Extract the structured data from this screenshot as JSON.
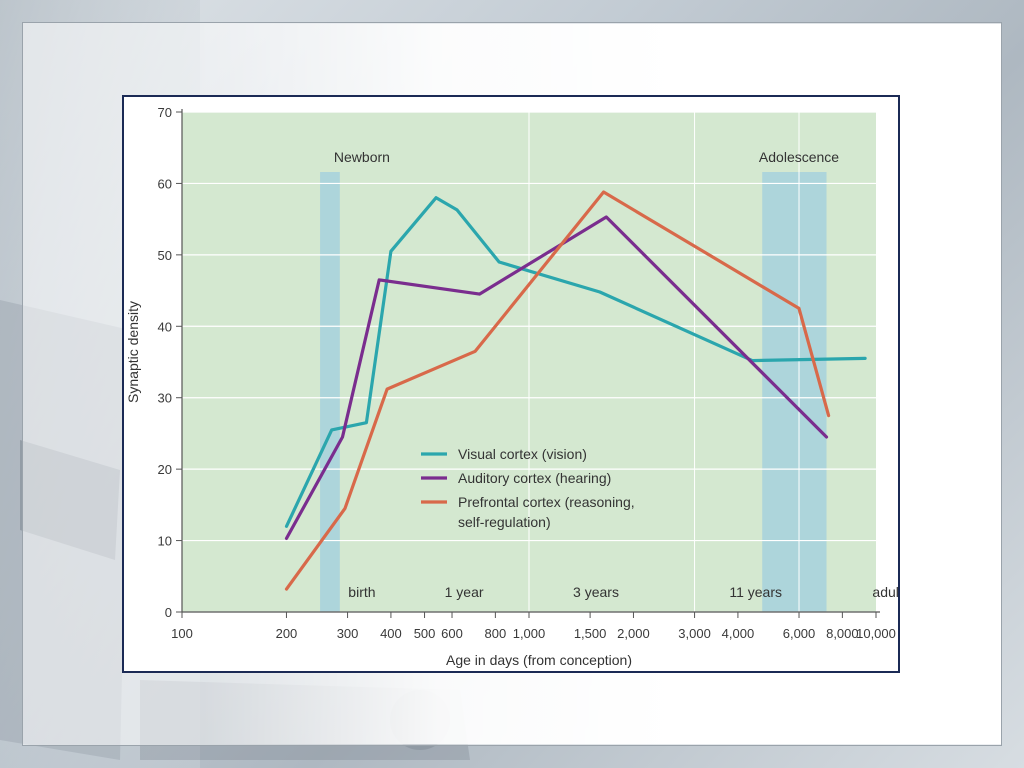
{
  "chart_data": {
    "type": "line",
    "xlabel": "Age in days (from conception)",
    "ylabel": "Synaptic density",
    "x_scale": "log",
    "xlim": [
      100,
      10000
    ],
    "ylim": [
      0,
      70
    ],
    "x_ticks": [
      "100",
      "200",
      "300",
      "400",
      "500",
      "600",
      "800",
      "1,000",
      "1,500",
      "2,000",
      "3,000",
      "4,000",
      "6,000",
      "8,000",
      "10,000"
    ],
    "x_tick_values": [
      100,
      200,
      300,
      400,
      500,
      600,
      800,
      1000,
      1500,
      2000,
      3000,
      4000,
      6000,
      8000,
      10000
    ],
    "y_ticks": [
      0,
      10,
      20,
      30,
      40,
      50,
      60,
      70
    ],
    "grid": true,
    "legend_placement": "center",
    "series": [
      {
        "name": "Visual cortex (vision)",
        "color": "#2ba6ad",
        "x": [
          200,
          270,
          340,
          400,
          540,
          620,
          820,
          1600,
          4400,
          9300
        ],
        "y": [
          12,
          25.5,
          26.5,
          50.5,
          58,
          56.3,
          49,
          44.8,
          35.2,
          35.5
        ]
      },
      {
        "name": "Auditory cortex (hearing)",
        "color": "#7a2d8e",
        "x": [
          200,
          290,
          370,
          720,
          1670,
          7200
        ],
        "y": [
          10.3,
          24.5,
          46.5,
          44.5,
          55.3,
          24.5
        ]
      },
      {
        "name": "Prefrontal cortex (reasoning, self-regulation)",
        "color": "#d8694a",
        "x": [
          200,
          295,
          390,
          700,
          1640,
          6000,
          7300
        ],
        "y": [
          3.2,
          14.5,
          31.2,
          36.5,
          58.8,
          42.5,
          27.5
        ]
      }
    ],
    "bands": [
      {
        "x0": 250,
        "x1": 285,
        "color": "#a8d3dc"
      },
      {
        "x0": 4700,
        "x1": 7200,
        "color": "#a8d3dc"
      }
    ],
    "section_labels": [
      {
        "text": "Newborn",
        "x": 330
      },
      {
        "text": "Adolescence",
        "x": 6000
      }
    ],
    "age_markers": [
      {
        "text": "birth",
        "x": 330
      },
      {
        "text": "1 year",
        "x": 650
      },
      {
        "text": "3 years",
        "x": 1560
      },
      {
        "text": "11 years",
        "x": 4500
      },
      {
        "text": "adult",
        "x": 10800
      }
    ]
  },
  "colors": {
    "plot_background": "#d4e8d0",
    "band": "#a8d3dc",
    "frame_border": "#1b2a55"
  }
}
